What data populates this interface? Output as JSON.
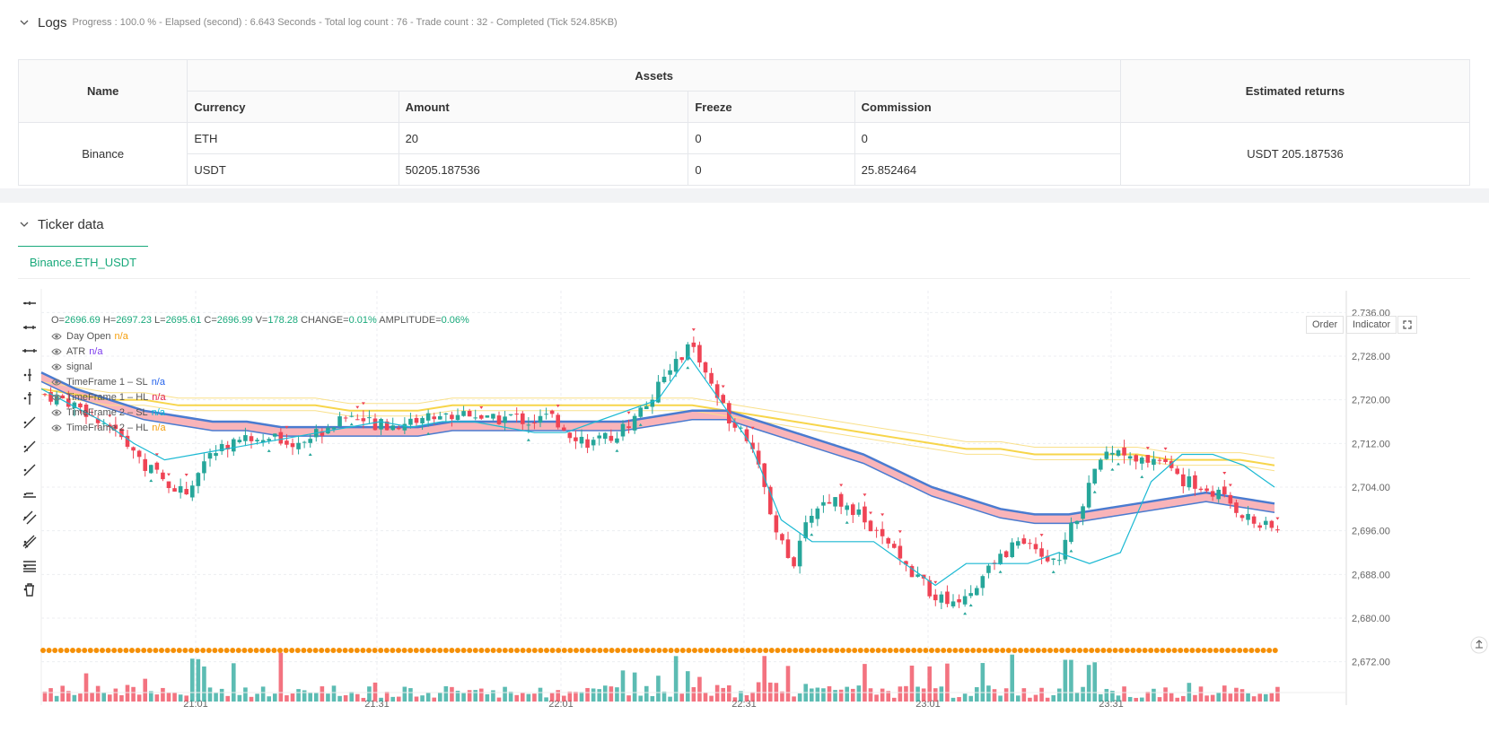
{
  "logs": {
    "title": "Logs",
    "progress": "Progress : 100.0 % - Elapsed (second) : 6.643  Seconds - Total log count : 76 - Trade count : 32 - Completed (Tick 524.85KB)"
  },
  "assets_table": {
    "name_header": "Name",
    "assets_header": "Assets",
    "returns_header": "Estimated returns",
    "columns": [
      "Currency",
      "Amount",
      "Freeze",
      "Commission"
    ],
    "exchange": "Binance",
    "rows": [
      {
        "currency": "ETH",
        "amount": "20",
        "freeze": "0",
        "commission": "0"
      },
      {
        "currency": "USDT",
        "amount": "50205.187536",
        "freeze": "0",
        "commission": "25.852464"
      }
    ],
    "estimated_returns": "USDT 205.187536"
  },
  "ticker": {
    "title": "Ticker data",
    "tab_label": "Binance.ETH_USDT",
    "buttons": {
      "order": "Order",
      "indicator": "Indicator"
    },
    "ohlc": {
      "o_label": "O=",
      "o": "2696.69",
      "h_label": "H=",
      "h": "2697.23",
      "l_label": "L=",
      "l": "2695.61",
      "c_label": "C=",
      "c": "2696.99",
      "v_label": "V=",
      "v": "178.28",
      "change_label": "CHANGE=",
      "change": "0.01%",
      "amp_label": "AMPLITUDE=",
      "amp": "0.06%"
    },
    "legend": [
      {
        "label": "Day Open",
        "value": "n/a",
        "color": "#f59e0b"
      },
      {
        "label": "ATR",
        "value": "n/a",
        "color": "#7c3aed"
      },
      {
        "label": "signal",
        "value": "",
        "color": "#555555"
      },
      {
        "label": "TimeFrame 1 – SL",
        "value": "n/a",
        "color": "#2563eb"
      },
      {
        "label": "TimeFrame 1 – HL",
        "value": "n/a",
        "color": "#e11d48"
      },
      {
        "label": "TimeFrame 2 – SL",
        "value": "n/a",
        "color": "#06b6d4"
      },
      {
        "label": "TimeFrame 2 – HL",
        "value": "n/a",
        "color": "#f59e0b"
      }
    ]
  },
  "chart_data": {
    "type": "candlestick",
    "y_ticks": [
      "2,736.00",
      "2,728.00",
      "2,720.00",
      "2,712.00",
      "2,704.00",
      "2,696.00",
      "2,688.00",
      "2,680.00",
      "2,672.00"
    ],
    "x_ticks": [
      "21:01",
      "21:31",
      "22:01",
      "22:31",
      "23:01",
      "23:31"
    ],
    "ylim": [
      2668,
      2740
    ],
    "colors": {
      "up": "#26a69a",
      "down": "#ef4455",
      "ma_blue": "#4a7bd0",
      "ma_yellow": "#f7d54a",
      "cyan": "#1bb9d3",
      "orange": "#f59008"
    },
    "close_path": [
      2721,
      2720,
      2718,
      2716,
      2712,
      2708,
      2705,
      2703,
      2709,
      2712,
      2713,
      2714,
      2712,
      2713,
      2715,
      2717,
      2716,
      2715,
      2716,
      2717,
      2717,
      2718,
      2716,
      2717,
      2716,
      2717,
      2714,
      2712,
      2713,
      2716,
      2720,
      2726,
      2730,
      2722,
      2716,
      2712,
      2698,
      2690,
      2700,
      2702,
      2700,
      2696,
      2692,
      2688,
      2684,
      2683,
      2686,
      2690,
      2694,
      2692,
      2690,
      2698,
      2708,
      2712,
      2708,
      2710,
      2706,
      2704,
      2703,
      2700,
      2697,
      2696
    ],
    "ma_blue": [
      2725,
      2722,
      2720,
      2718,
      2717,
      2716,
      2716,
      2715,
      2715,
      2715,
      2715,
      2715,
      2716,
      2716,
      2716,
      2716,
      2716,
      2716,
      2717,
      2718,
      2718,
      2716,
      2714,
      2712,
      2710,
      2707,
      2704,
      2702,
      2700,
      2699,
      2699,
      2700,
      2701,
      2702,
      2703,
      2702,
      2701
    ],
    "ma_yellow": [
      2722,
      2721,
      2720,
      2720,
      2719,
      2719,
      2719,
      2719,
      2719,
      2718,
      2718,
      2718,
      2719,
      2719,
      2719,
      2719,
      2719,
      2719,
      2719,
      2719,
      2718,
      2717,
      2716,
      2715,
      2714,
      2713,
      2712,
      2711,
      2711,
      2710,
      2710,
      2710,
      2710,
      2709,
      2709,
      2709,
      2708
    ],
    "cyan_line": [
      2722,
      2719,
      2716,
      2712,
      2709,
      2710,
      2711,
      2712,
      2713,
      2714,
      2715,
      2716,
      2715,
      2716,
      2716,
      2715,
      2714,
      2714,
      2716,
      2718,
      2720,
      2728,
      2720,
      2712,
      2698,
      2694,
      2694,
      2694,
      2690,
      2686,
      2690,
      2690,
      2690,
      2692,
      2690,
      2692,
      2705,
      2710,
      2710,
      2708,
      2704
    ],
    "orange_level": 2672
  }
}
